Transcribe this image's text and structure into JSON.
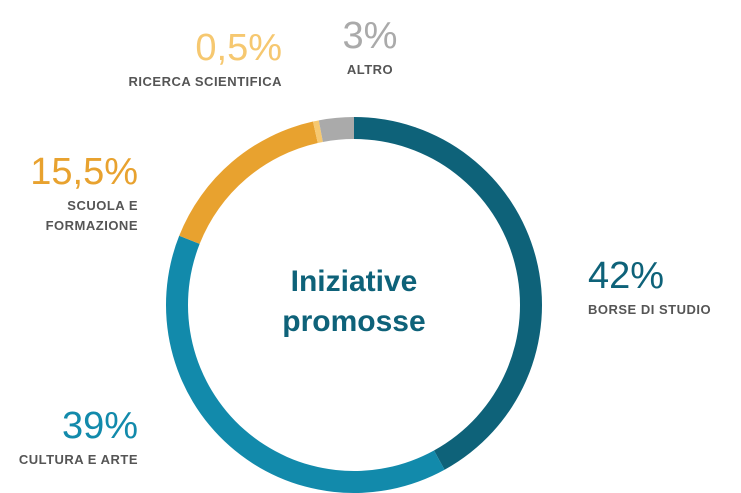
{
  "chart_data": {
    "type": "pie",
    "donut": true,
    "title": "Iniziative promosse",
    "categories": [
      "BORSE DI STUDIO",
      "CULTURA E ARTE",
      "SCUOLA E FORMAZIONE",
      "RICERCA SCIENTIFICA",
      "ALTRO"
    ],
    "values": [
      42,
      39,
      15.5,
      0.5,
      3
    ],
    "value_labels": [
      "42%",
      "39%",
      "15,5%",
      "0,5%",
      "3%"
    ],
    "colors": [
      "#0e6279",
      "#128aab",
      "#e8a22f",
      "#f6c870",
      "#aaaaaa"
    ]
  }
}
